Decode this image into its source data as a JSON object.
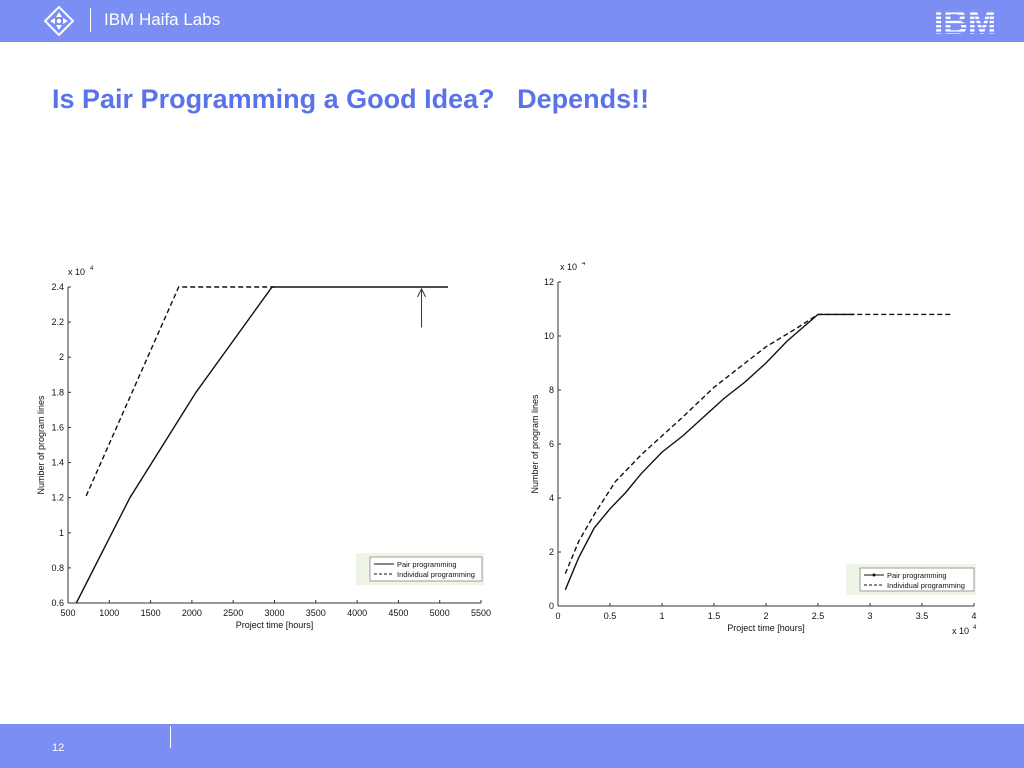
{
  "header": {
    "lab_name": "IBM Haifa Labs",
    "brand_logo": "IBM",
    "logo_icon": "ibm-research-diamond-icon",
    "bar_color": "#7b8ef4"
  },
  "slide": {
    "title": "Is Pair Programming a Good Idea?   Depends!!",
    "title_color": "#5a73e8"
  },
  "footer": {
    "page_number": "12"
  },
  "chart_data": [
    {
      "type": "line",
      "xlabel": "Project time [hours]",
      "ylabel": "Number of program lines",
      "y_multiplier": "x 10",
      "y_multiplier_exp": "4",
      "xlim": [
        500,
        5500
      ],
      "ylim": [
        0.6,
        2.4
      ],
      "x_ticks": [
        500,
        1000,
        1500,
        2000,
        2500,
        3000,
        3500,
        4000,
        4500,
        5000,
        5500
      ],
      "y_ticks": [
        0.6,
        0.8,
        1,
        1.2,
        1.4,
        1.6,
        1.8,
        2,
        2.2,
        2.4
      ],
      "series": [
        {
          "name": "Pair programming",
          "style": "solid",
          "points": [
            [
              600,
              0.6
            ],
            [
              1250,
              1.2
            ],
            [
              2050,
              1.8
            ],
            [
              2970,
              2.4
            ],
            [
              5100,
              2.4
            ]
          ]
        },
        {
          "name": "Individual programming",
          "style": "dashed",
          "points": [
            [
              720,
              1.21
            ],
            [
              1840,
              2.4
            ],
            [
              3000,
              2.4
            ]
          ]
        }
      ],
      "annotation": {
        "type": "arrow",
        "x": 4780,
        "y_from": 2.17,
        "y_to": 2.395
      },
      "legend_position": "bottom-right",
      "grid": false
    },
    {
      "type": "line",
      "xlabel": "Project time [hours]",
      "ylabel": "Number of program lines",
      "y_multiplier": "x 10",
      "y_multiplier_exp": "4",
      "x_multiplier": "x 10",
      "x_multiplier_exp": "4",
      "xlim": [
        0,
        4
      ],
      "ylim": [
        0,
        12
      ],
      "x_ticks": [
        0,
        0.5,
        1,
        1.5,
        2,
        2.5,
        3,
        3.5,
        4
      ],
      "y_ticks": [
        0,
        2,
        4,
        6,
        8,
        10,
        12
      ],
      "series": [
        {
          "name": "Pair programming",
          "style": "solid-dot",
          "points": [
            [
              0.07,
              0.6
            ],
            [
              0.2,
              1.8
            ],
            [
              0.35,
              2.9
            ],
            [
              0.5,
              3.6
            ],
            [
              0.65,
              4.2
            ],
            [
              0.8,
              4.9
            ],
            [
              1.0,
              5.7
            ],
            [
              1.2,
              6.3
            ],
            [
              1.4,
              7.0
            ],
            [
              1.6,
              7.7
            ],
            [
              1.8,
              8.3
            ],
            [
              2.0,
              9.0
            ],
            [
              2.2,
              9.8
            ],
            [
              2.35,
              10.3
            ],
            [
              2.5,
              10.8
            ],
            [
              2.85,
              10.8
            ]
          ]
        },
        {
          "name": "Individual programming",
          "style": "dashed",
          "points": [
            [
              0.07,
              1.2
            ],
            [
              0.2,
              2.4
            ],
            [
              0.35,
              3.4
            ],
            [
              0.55,
              4.6
            ],
            [
              0.8,
              5.6
            ],
            [
              1.0,
              6.3
            ],
            [
              1.2,
              7.0
            ],
            [
              1.5,
              8.1
            ],
            [
              1.8,
              9.0
            ],
            [
              2.0,
              9.6
            ],
            [
              2.3,
              10.3
            ],
            [
              2.5,
              10.8
            ],
            [
              3.8,
              10.8
            ]
          ]
        }
      ],
      "legend_position": "bottom-right",
      "grid": false
    }
  ]
}
